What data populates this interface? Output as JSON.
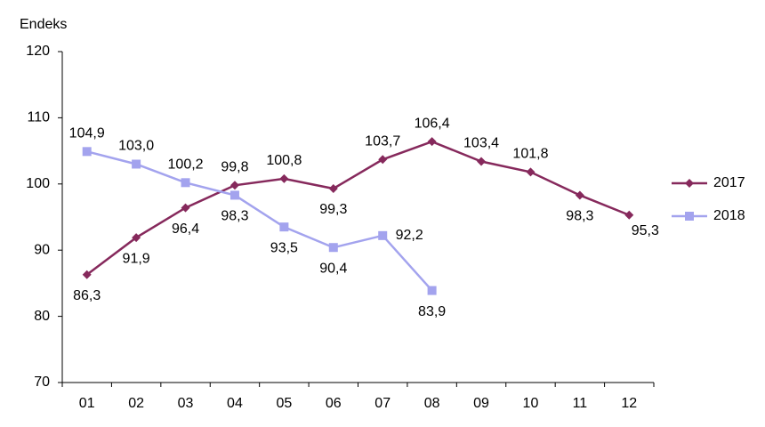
{
  "chart_data": {
    "type": "line",
    "y_axis_label": "Endeks",
    "categories": [
      "01",
      "02",
      "03",
      "04",
      "05",
      "06",
      "07",
      "08",
      "09",
      "10",
      "11",
      "12"
    ],
    "series": [
      {
        "name": "2017",
        "color": "#86295c",
        "marker": "diamond",
        "values": [
          86.3,
          91.9,
          96.4,
          99.8,
          100.8,
          99.3,
          103.7,
          106.4,
          103.4,
          101.8,
          98.3,
          95.3
        ],
        "value_labels": [
          "86,3",
          "91,9",
          "96,4",
          "99,8",
          "100,8",
          "99,3",
          "103,7",
          "106,4",
          "103,4",
          "101,8",
          "98,3",
          "95,3"
        ]
      },
      {
        "name": "2018",
        "color": "#a3a3ee",
        "marker": "square",
        "values": [
          104.9,
          103.0,
          100.2,
          98.3,
          93.5,
          90.4,
          92.2,
          83.9,
          null,
          null,
          null,
          null
        ],
        "value_labels": [
          "104,9",
          "103,0",
          "100,2",
          "98,3",
          "93,5",
          "90,4",
          "92,2",
          "83,9",
          null,
          null,
          null,
          null
        ]
      }
    ],
    "ylim": [
      70,
      120
    ],
    "yticks": [
      70,
      80,
      90,
      100,
      110,
      120
    ],
    "grid": false,
    "legend": "right"
  }
}
